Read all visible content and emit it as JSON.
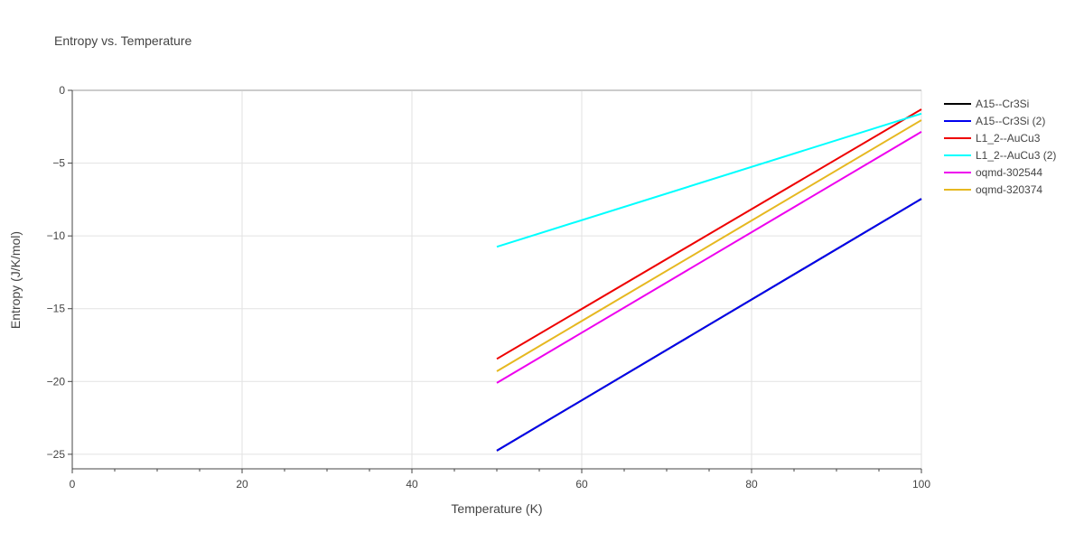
{
  "chart_data": {
    "type": "line",
    "title": "Entropy vs. Temperature",
    "xlabel": "Temperature (K)",
    "ylabel": "Entropy (J/K/mol)",
    "xlim": [
      0,
      100
    ],
    "ylim": [
      -26,
      0
    ],
    "xticks": [
      0,
      20,
      40,
      60,
      80,
      100
    ],
    "yticks": [
      0,
      -5,
      -10,
      -15,
      -20,
      -25
    ],
    "xtick_labels": [
      "0",
      "20",
      "40",
      "60",
      "80",
      "100"
    ],
    "ytick_labels": [
      "0",
      "−5",
      "−10",
      "−15",
      "−20",
      "−25"
    ],
    "grid": true,
    "legend_position": "right",
    "series": [
      {
        "name": "A15--Cr3Si",
        "color": "#000000",
        "x": [
          50,
          100
        ],
        "y": [
          -24.75,
          -7.45
        ]
      },
      {
        "name": "A15--Cr3Si (2)",
        "color": "#0000ee",
        "x": [
          50,
          100
        ],
        "y": [
          -24.75,
          -7.45
        ]
      },
      {
        "name": "L1_2--AuCu3",
        "color": "#ee0000",
        "x": [
          50,
          100
        ],
        "y": [
          -18.45,
          -1.3
        ]
      },
      {
        "name": "L1_2--AuCu3 (2)",
        "color": "#00ffff",
        "x": [
          50,
          100
        ],
        "y": [
          -10.75,
          -1.6
        ]
      },
      {
        "name": "oqmd-302544",
        "color": "#ee00ee",
        "x": [
          50,
          100
        ],
        "y": [
          -20.1,
          -2.85
        ]
      },
      {
        "name": "oqmd-320374",
        "color": "#e6b820",
        "x": [
          50,
          100
        ],
        "y": [
          -19.3,
          -2.05
        ]
      }
    ]
  }
}
